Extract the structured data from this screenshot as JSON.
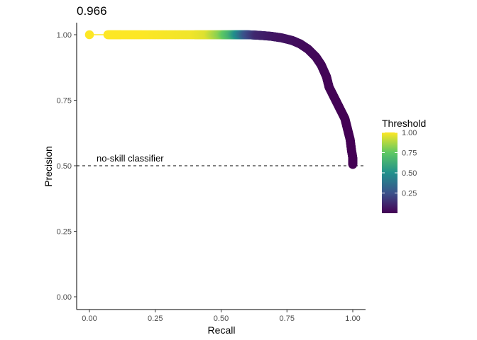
{
  "chart_data": {
    "type": "line",
    "title": "0.966",
    "xlabel": "Recall",
    "ylabel": "Precision",
    "xlim": [
      0,
      1
    ],
    "ylim": [
      0,
      1
    ],
    "x_ticks": [
      "0.00",
      "0.25",
      "0.50",
      "0.75",
      "1.00"
    ],
    "y_ticks": [
      "0.00",
      "0.25",
      "0.50",
      "0.75",
      "1.00"
    ],
    "grid": false,
    "legend": {
      "title": "Threshold",
      "placement": "right",
      "type": "colorbar",
      "palette": "viridis",
      "range": [
        0,
        1
      ],
      "ticks": [
        "0.25",
        "0.50",
        "0.75",
        "1.00"
      ],
      "colors": [
        "#440154",
        "#3B528B",
        "#21908C",
        "#5DC863",
        "#FDE725"
      ]
    },
    "reference_line": {
      "label": "no-skill classifier",
      "y": 0.5,
      "style": "dashed"
    },
    "series": [
      {
        "points": [
          {
            "recall": 0.0,
            "precision": 1.0,
            "threshold": 1.0
          },
          {
            "recall": 0.07,
            "precision": 1.0,
            "threshold": 1.0
          },
          {
            "recall": 0.12,
            "precision": 1.0,
            "threshold": 1.0
          },
          {
            "recall": 0.2,
            "precision": 1.0,
            "threshold": 1.0
          },
          {
            "recall": 0.3,
            "precision": 1.0,
            "threshold": 0.99
          },
          {
            "recall": 0.4,
            "precision": 1.0,
            "threshold": 0.98
          },
          {
            "recall": 0.45,
            "precision": 1.0,
            "threshold": 0.95
          },
          {
            "recall": 0.5,
            "precision": 1.0,
            "threshold": 0.82
          },
          {
            "recall": 0.54,
            "precision": 1.0,
            "threshold": 0.65
          },
          {
            "recall": 0.57,
            "precision": 1.0,
            "threshold": 0.45
          },
          {
            "recall": 0.6,
            "precision": 1.0,
            "threshold": 0.25
          },
          {
            "recall": 0.64,
            "precision": 0.998,
            "threshold": 0.12
          },
          {
            "recall": 0.69,
            "precision": 0.994,
            "threshold": 0.08
          },
          {
            "recall": 0.73,
            "precision": 0.988,
            "threshold": 0.06
          },
          {
            "recall": 0.77,
            "precision": 0.978,
            "threshold": 0.05
          },
          {
            "recall": 0.8,
            "precision": 0.965,
            "threshold": 0.04
          },
          {
            "recall": 0.83,
            "precision": 0.945,
            "threshold": 0.03
          },
          {
            "recall": 0.86,
            "precision": 0.915,
            "threshold": 0.025
          },
          {
            "recall": 0.88,
            "precision": 0.885,
            "threshold": 0.02
          },
          {
            "recall": 0.9,
            "precision": 0.84,
            "threshold": 0.015
          },
          {
            "recall": 0.91,
            "precision": 0.8,
            "threshold": 0.012
          },
          {
            "recall": 0.93,
            "precision": 0.76,
            "threshold": 0.01
          },
          {
            "recall": 0.95,
            "precision": 0.72,
            "threshold": 0.008
          },
          {
            "recall": 0.97,
            "precision": 0.68,
            "threshold": 0.006
          },
          {
            "recall": 0.98,
            "precision": 0.64,
            "threshold": 0.004
          },
          {
            "recall": 0.99,
            "precision": 0.6,
            "threshold": 0.003
          },
          {
            "recall": 0.995,
            "precision": 0.56,
            "threshold": 0.002
          },
          {
            "recall": 1.0,
            "precision": 0.53,
            "threshold": 0.001
          },
          {
            "recall": 1.0,
            "precision": 0.505,
            "threshold": 0.0
          }
        ]
      }
    ]
  }
}
